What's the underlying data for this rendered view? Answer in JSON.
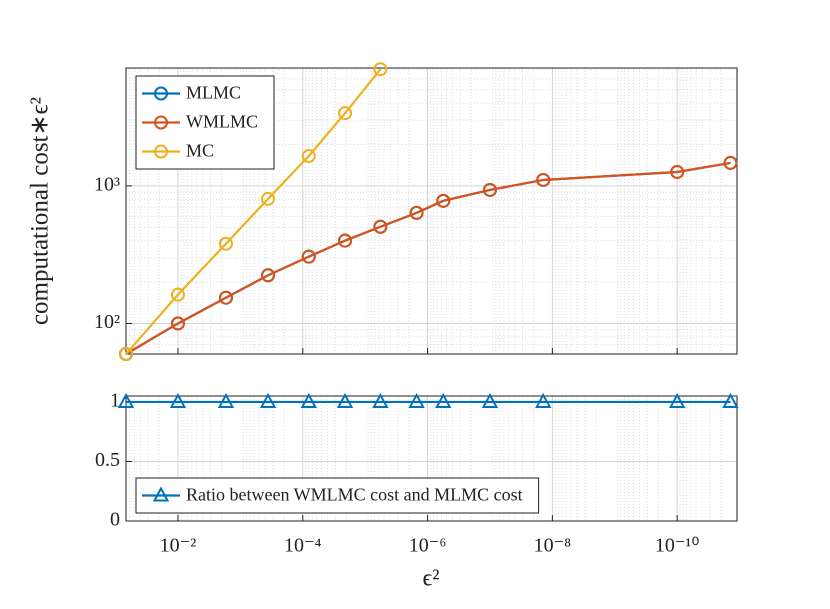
{
  "chart_data": [
    {
      "type": "line",
      "ylabel": "computational cost∗ϵ²",
      "xscale": "log",
      "yscale": "log",
      "grid": true,
      "legend": "northwest",
      "marker": "circle",
      "x": [
        0.068,
        0.01,
        0.0017,
        0.00036,
        8e-05,
        2.1e-05,
        5.7e-06,
        1.5e-06,
        5.6e-07,
        1e-07,
        1.4e-08,
        1e-10,
        1.4e-11
      ],
      "xlim": [
        0.068,
        1.1e-11
      ],
      "xticks": [
        0.01,
        0.0001,
        1e-06,
        1e-08,
        1e-10
      ],
      "ylim": [
        60,
        7200
      ],
      "yticks": [
        {
          "value": 100,
          "label": "10²"
        },
        {
          "value": 1000,
          "label": "10³"
        }
      ],
      "series": [
        {
          "name": "MLMC",
          "color": "#0072bd",
          "values": [
            60,
            100,
            154,
            224,
            306,
            400,
            505,
            637,
            779,
            935,
            1105,
            1263,
            1470
          ]
        },
        {
          "name": "WMLMC",
          "color": "#d95319",
          "values": [
            60,
            100,
            154,
            224,
            306,
            400,
            505,
            637,
            779,
            935,
            1105,
            1263,
            1470
          ]
        },
        {
          "name": "MC",
          "color": "#edb120",
          "values": [
            60,
            162,
            380,
            805,
            1650,
            3380,
            7050,
            null,
            null,
            null,
            null,
            null,
            null
          ]
        }
      ]
    },
    {
      "type": "line",
      "xlabel": "ϵ²",
      "xscale": "log",
      "yscale": "linear",
      "grid": true,
      "legend": "southwest",
      "marker": "triangle",
      "x": [
        0.068,
        0.01,
        0.0017,
        0.00036,
        8e-05,
        2.1e-05,
        5.7e-06,
        1.5e-06,
        5.6e-07,
        1e-07,
        1.4e-08,
        1e-10,
        1.4e-11
      ],
      "xlim": [
        0.068,
        1.1e-11
      ],
      "xticks": [
        {
          "value": 0.01,
          "label": "10⁻²"
        },
        {
          "value": 0.0001,
          "label": "10⁻⁴"
        },
        {
          "value": 1e-06,
          "label": "10⁻⁶"
        },
        {
          "value": 1e-08,
          "label": "10⁻⁸"
        },
        {
          "value": 1e-10,
          "label": "10⁻¹⁰"
        }
      ],
      "ylim": [
        0,
        1.05
      ],
      "yticks": [
        0,
        0.5,
        1
      ],
      "series": [
        {
          "name": "Ratio between WMLMC cost and MLMC cost",
          "color": "#0072bd",
          "values": [
            1,
            1,
            1,
            1,
            1,
            1,
            1,
            1,
            1,
            1,
            1,
            1,
            1
          ]
        }
      ]
    }
  ]
}
